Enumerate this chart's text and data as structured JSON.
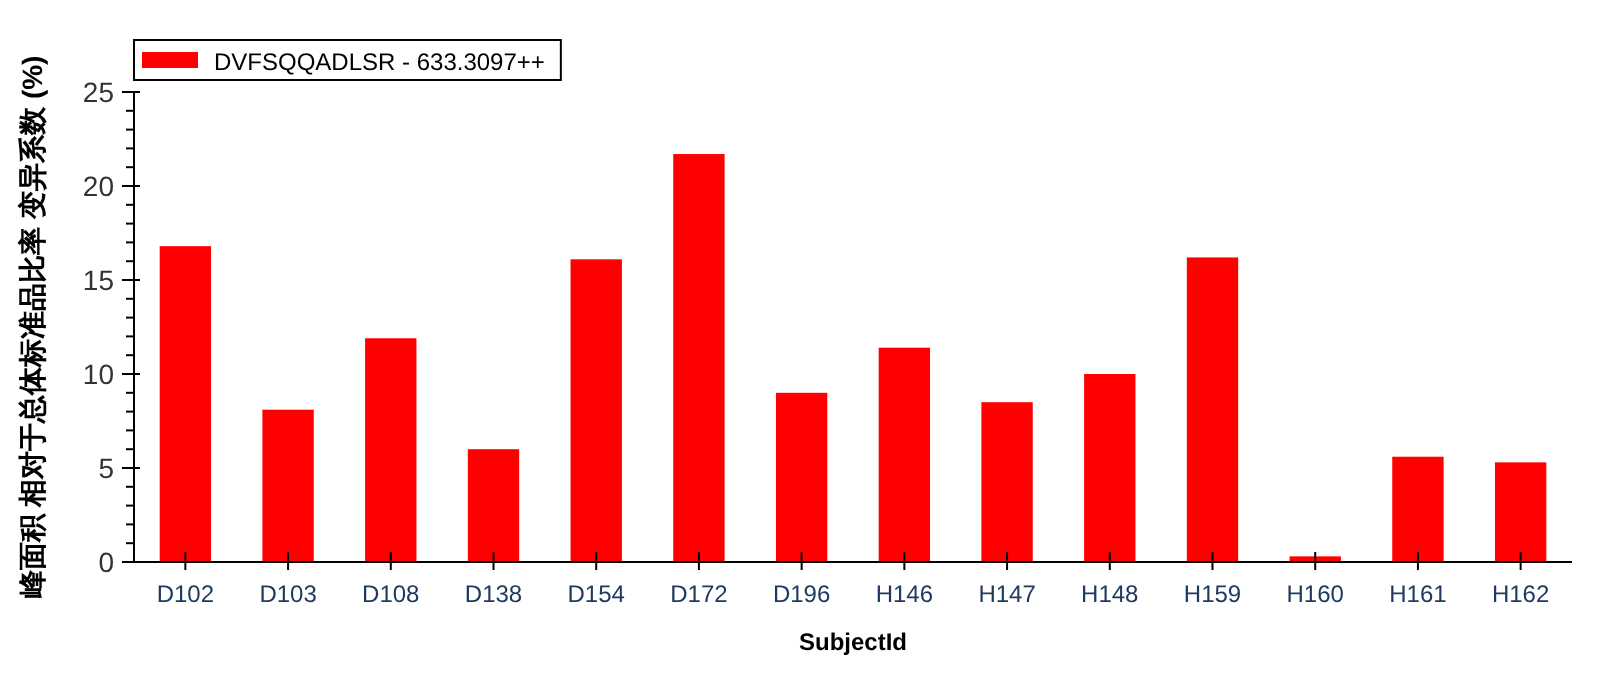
{
  "chart_data": {
    "type": "bar",
    "xlabel": "SubjectId",
    "ylabel": "峰面积 相对于总体标准品比率 变异系数 (%)",
    "categories": [
      "D102",
      "D103",
      "D108",
      "D138",
      "D154",
      "D172",
      "D196",
      "H146",
      "H147",
      "H148",
      "H159",
      "H160",
      "H161",
      "H162"
    ],
    "series": [
      {
        "name": "DVFSQQADLSR - 633.3097++",
        "color": "#ff0000",
        "values": [
          16.8,
          8.1,
          11.9,
          6.0,
          16.1,
          21.7,
          9.0,
          11.4,
          8.5,
          10.0,
          16.2,
          0.3,
          5.6,
          5.3
        ]
      }
    ],
    "ylim": [
      0,
      25
    ],
    "yticks": [
      0,
      5,
      10,
      15,
      20,
      25
    ],
    "legend": "top left",
    "grid": false
  }
}
